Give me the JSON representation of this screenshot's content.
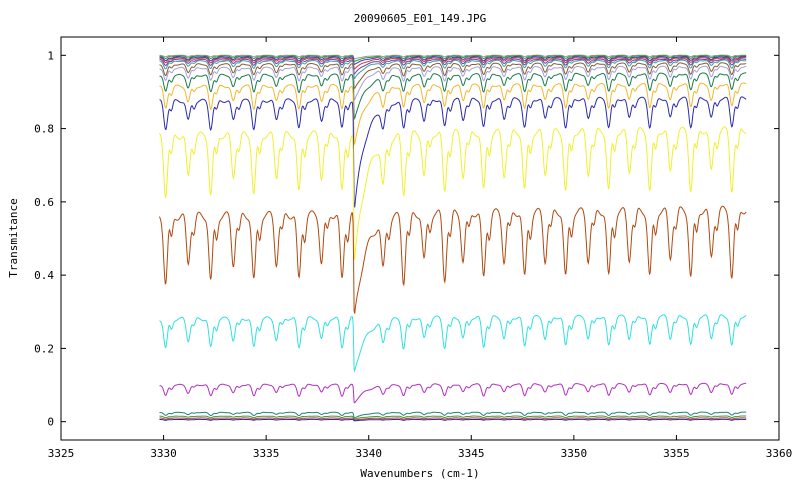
{
  "chart_data": {
    "type": "line",
    "title": "20090605_E01_149.JPG",
    "xlabel": "Wavenumbers (cm-1)",
    "ylabel": "Transmitance",
    "xlim": [
      3325,
      3360
    ],
    "ylim": [
      -0.05,
      1.05
    ],
    "x_ticks": [
      3325,
      3330,
      3335,
      3340,
      3345,
      3350,
      3355,
      3360
    ],
    "x_tick_labels": [
      "3325",
      "3330",
      "3335",
      "3340",
      "3345",
      "3350",
      "3355",
      "3360"
    ],
    "y_ticks": [
      0,
      0.2,
      0.4,
      0.6,
      0.8,
      1
    ],
    "y_tick_labels": [
      "0",
      "0.2",
      "0.4",
      "0.6",
      "0.8",
      "1"
    ],
    "grid": false,
    "legend": "none",
    "x_range_data": [
      3329.8,
      3358.4
    ],
    "line_positions": [
      3330.1,
      3331.2,
      3332.3,
      3333.4,
      3334.4,
      3335.5,
      3336.6,
      3337.7,
      3338.7,
      3340.7,
      3341.7,
      3342.7,
      3343.7,
      3344.6,
      3345.6,
      3346.6,
      3347.6,
      3348.6,
      3349.6,
      3350.7,
      3351.7,
      3352.7,
      3353.7,
      3354.7,
      3355.7,
      3356.7,
      3357.7
    ],
    "main_line_position": 3339.3,
    "series": [
      {
        "color": "#9a9a9a",
        "baseline": 1.0,
        "depth": 0.004,
        "main_depth": 0.01
      },
      {
        "color": "#2a9a2a",
        "baseline": 0.998,
        "depth": 0.007,
        "main_depth": 0.015
      },
      {
        "color": "#3535c8",
        "baseline": 0.995,
        "depth": 0.01,
        "main_depth": 0.02
      },
      {
        "color": "#c83a3a",
        "baseline": 0.992,
        "depth": 0.012,
        "main_depth": 0.03
      },
      {
        "color": "#7a3aa0",
        "baseline": 0.988,
        "depth": 0.015,
        "main_depth": 0.04
      },
      {
        "color": "#3aa0a0",
        "baseline": 0.984,
        "depth": 0.02,
        "main_depth": 0.05
      },
      {
        "color": "#8a5a2a",
        "baseline": 0.975,
        "depth": 0.03,
        "main_depth": 0.07
      },
      {
        "color": "#a0a0e0",
        "baseline": 0.965,
        "depth": 0.035,
        "main_depth": 0.09
      },
      {
        "color": "#1a7a4a",
        "baseline": 0.945,
        "depth": 0.045,
        "main_depth": 0.12
      },
      {
        "color": "#f0b830",
        "baseline": 0.915,
        "depth": 0.06,
        "main_depth": 0.16
      },
      {
        "color": "#2a2ab0",
        "baseline": 0.875,
        "depth": 0.075,
        "main_depth": 0.3
      },
      {
        "color": "#f0f030",
        "baseline": 0.78,
        "depth": 0.16,
        "main_depth": 0.36
      },
      {
        "color": "#b04a10",
        "baseline": 0.56,
        "depth": 0.18,
        "main_depth": 0.29
      },
      {
        "color": "#30e0e0",
        "baseline": 0.28,
        "depth": 0.08,
        "main_depth": 0.15
      },
      {
        "color": "#b030c0",
        "baseline": 0.1,
        "depth": 0.03,
        "main_depth": 0.05
      },
      {
        "color": "#208080",
        "baseline": 0.025,
        "depth": 0.008,
        "main_depth": 0.015
      },
      {
        "color": "#4a9a2a",
        "baseline": 0.015,
        "depth": 0.004,
        "main_depth": 0.008
      },
      {
        "color": "#c03a2a",
        "baseline": 0.01,
        "depth": 0.003,
        "main_depth": 0.006
      },
      {
        "color": "#2a2ab0",
        "baseline": 0.006,
        "depth": 0.002,
        "main_depth": 0.004
      }
    ]
  }
}
